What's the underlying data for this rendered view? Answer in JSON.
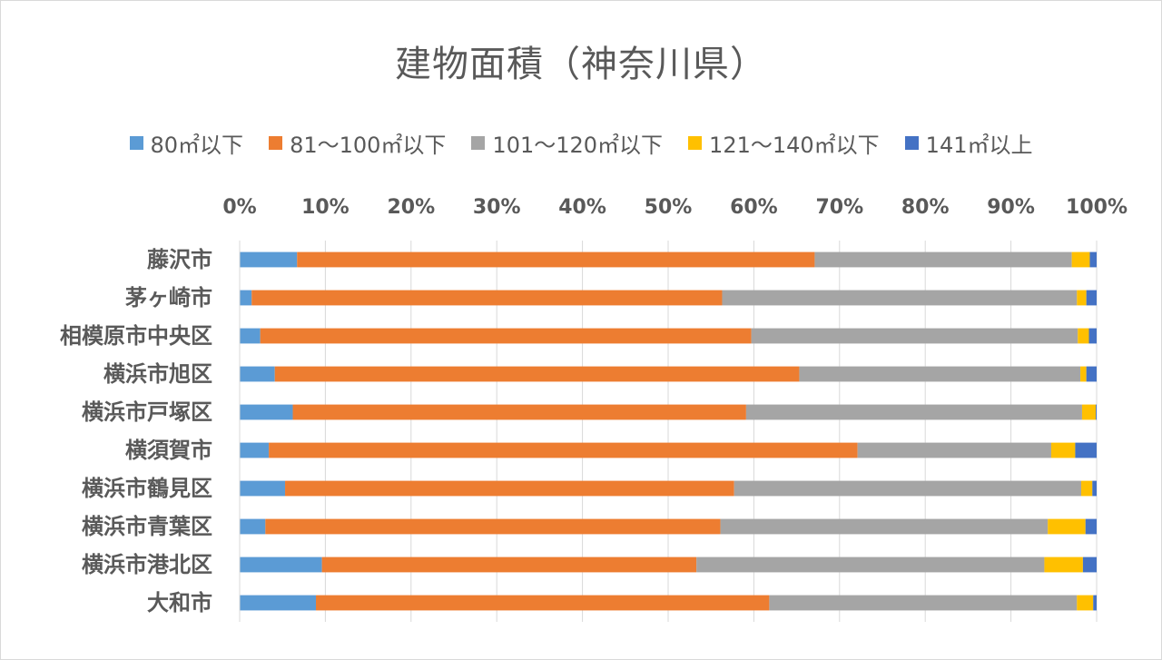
{
  "chart_data": {
    "type": "bar",
    "orientation": "horizontal",
    "stacked": "percent",
    "title": "建物面積（神奈川県）",
    "xlabel": "",
    "ylabel": "",
    "xlim": [
      0,
      100
    ],
    "x_ticks": [
      "0%",
      "10%",
      "20%",
      "30%",
      "40%",
      "50%",
      "60%",
      "70%",
      "80%",
      "90%",
      "100%"
    ],
    "grid": true,
    "legend_position": "top",
    "categories": [
      "藤沢市",
      "茅ヶ崎市",
      "相模原市中央区",
      "横浜市旭区",
      "横浜市戸塚区",
      "横須賀市",
      "横浜市鶴見区",
      "横浜市青葉区",
      "横浜市港北区",
      "大和市"
    ],
    "series": [
      {
        "name": "80㎡以下",
        "color": "#5B9BD5",
        "values": [
          6.7,
          1.4,
          2.4,
          4.1,
          6.2,
          3.4,
          5.3,
          3.0,
          9.6,
          8.9
        ]
      },
      {
        "name": "81〜100㎡以下",
        "color": "#ED7D31",
        "values": [
          60.4,
          54.9,
          57.3,
          61.2,
          52.9,
          68.7,
          52.4,
          53.1,
          43.7,
          52.9
        ]
      },
      {
        "name": "101〜120㎡以下",
        "color": "#A5A5A5",
        "values": [
          30.0,
          41.4,
          38.1,
          32.8,
          39.2,
          22.6,
          40.5,
          38.2,
          40.6,
          35.9
        ]
      },
      {
        "name": "121〜140㎡以下",
        "color": "#FFC000",
        "values": [
          2.1,
          1.1,
          1.3,
          0.7,
          1.6,
          2.8,
          1.3,
          4.4,
          4.5,
          1.9
        ]
      },
      {
        "name": "141㎡以上",
        "color": "#4472C4",
        "values": [
          0.8,
          1.2,
          0.9,
          1.2,
          0.1,
          2.5,
          0.5,
          1.3,
          1.6,
          0.4
        ]
      }
    ]
  }
}
